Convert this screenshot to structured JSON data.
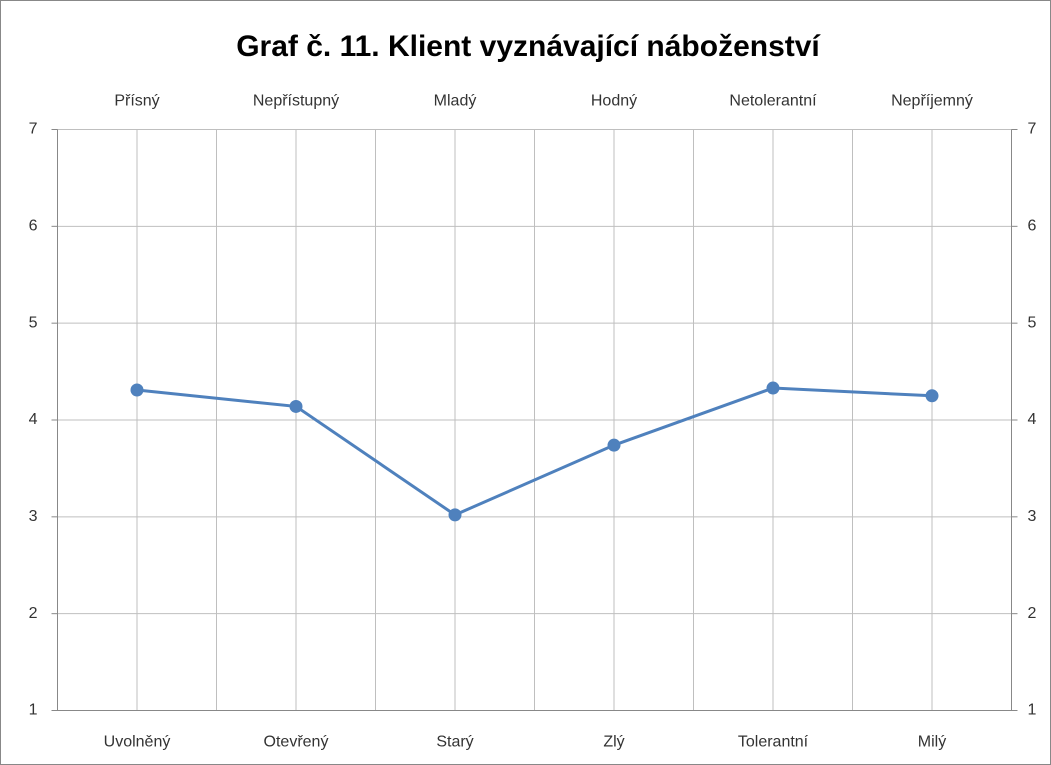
{
  "chart_data": {
    "type": "line",
    "title": "Graf č. 11. Klient vyznávající náboženství",
    "categories": [
      "Uvolněný",
      "Otevřený",
      "Starý",
      "Zlý",
      "Tolerantní",
      "Milý"
    ],
    "categories_top": [
      "Přísný",
      "Nepřístupný",
      "Mladý",
      "Hodný",
      "Netolerantní",
      "Nepříjemný"
    ],
    "values": [
      4.31,
      4.14,
      3.02,
      3.74,
      4.33,
      4.25
    ],
    "color": "#4f81bd",
    "ylim": [
      1,
      7
    ],
    "yticks": [
      1,
      2,
      3,
      4,
      5,
      6,
      7
    ],
    "y2lim": [
      1,
      7
    ],
    "y2ticks": [
      1,
      2,
      3,
      4,
      5,
      6,
      7
    ],
    "grid": true
  }
}
